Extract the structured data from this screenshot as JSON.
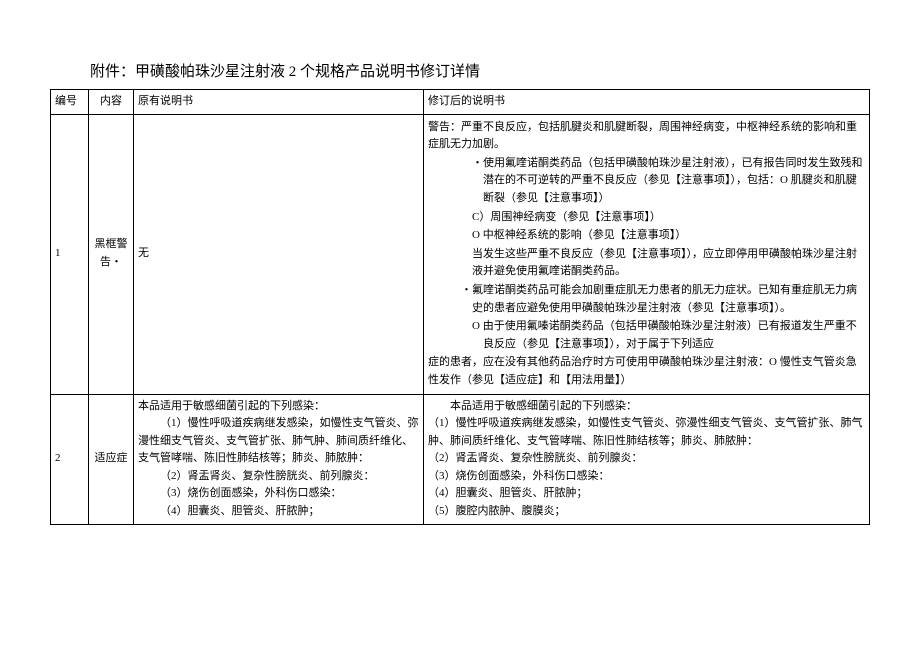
{
  "title": "附件：甲磺酸帕珠沙星注射液 2 个规格产品说明书修订详情",
  "headers": {
    "num": "编号",
    "content": "内容",
    "original": "原有说明书",
    "revised": "修订后的说明书"
  },
  "rows": [
    {
      "num": "1",
      "content": "黑框警告・",
      "original": "无",
      "revised": {
        "p1": "警告：严重不良反应，包括肌腱炎和肌腱断裂，周围神经病变，中枢神经系统的影响和重症肌无力加剧。",
        "p2": "・使用氟喹诺酮类药品（包括甲磺酸帕珠沙星注射液），已有报告同时发生致残和潜在的不可逆转的严重不良反应（参见【注意事项】），包括：O 肌腱炎和肌腱断裂（参见【注意事项】）",
        "p3": "C）周围神经病变（参见【注意事项】）",
        "p4": "O 中枢神经系统的影响（参见【注意事项】）",
        "p5": "当发生这些严重不良反应（参见【注意事项】），应立即停用甲磺酸帕珠沙星注射液并避免使用氟喹诺酮类药品。",
        "p6": "・氟喹诺酮类药品可能会加剧重症肌无力患者的肌无力症状。已知有重症肌无力病史的患者应避免使用甲磺酸帕珠沙星注射液（参见【注意事项】）。",
        "p7": "O 由于使用氟嗪诺酮类药品（包括甲磺酸帕珠沙星注射液）已有报道发生严重不良反应（参见【注意事项】），对于属于下列适应",
        "p8": "症的患者，应在没有其他药品治疗时方可使用甲磺酸帕珠沙星注射液：O 慢性支气管炎急性发作（参见【适应症】和【用法用量】）"
      }
    },
    {
      "num": "2",
      "content": "适应症",
      "original": {
        "p1": "本品适用于敏感细菌引起的下列感染：",
        "p2": "（1）慢性呼吸道疾病继发感染，如慢性支气管炎、弥漫性细支气管炎、支气管扩张、肺气肿、肺间质纤维化、支气管哮喘、陈旧性肺结核等；肺炎、肺脓肿：",
        "p3": "（2）肾盂肾炎、复杂性膀胱炎、前列腺炎：",
        "p4": "（3）烧伤创面感染，外科伤口感染：",
        "p5": "（4）胆囊炎、胆管炎、肝脓肿；"
      },
      "revised": {
        "p1": "本品适用于敏感细菌引起的下列感染：",
        "p2": "（1）慢性呼吸道疾病继发感染，如慢性支气管炎、弥漫性细支气管炎、支气管扩张、肺气肿、肺间质纤维化、支气管哮喘、陈旧性肺结核等；肺炎、肺脓肿：",
        "p3": "（2）肾盂肾炎、复杂性膀胱炎、前列腺炎：",
        "p4": "（3）烧伤创面感染，外科伤口感染：",
        "p5": "（4）胆囊炎、胆管炎、肝脓肿；",
        "p6": "（5）腹腔内脓肿、腹膜炎；"
      }
    }
  ]
}
